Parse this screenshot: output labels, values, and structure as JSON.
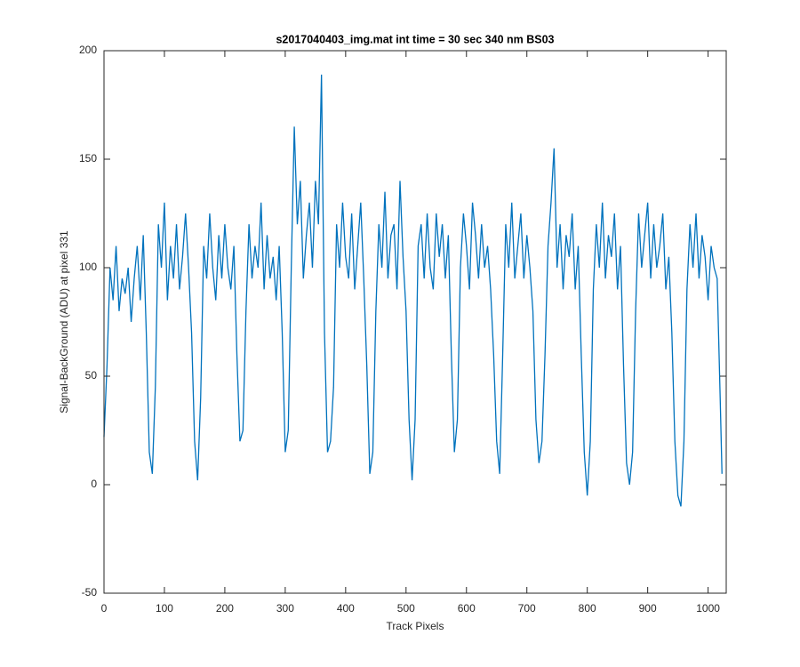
{
  "chart_data": {
    "type": "line",
    "title": "s2017040403_img.mat int time = 30 sec  340 nm BS03",
    "xlabel": "Track Pixels",
    "ylabel": "Signal-BackGround (ADU) at pixel 331",
    "x": [
      0,
      5,
      10,
      15,
      20,
      25,
      30,
      35,
      40,
      45,
      50,
      55,
      60,
      65,
      70,
      75,
      80,
      85,
      90,
      95,
      100,
      105,
      110,
      115,
      120,
      125,
      130,
      135,
      140,
      145,
      150,
      155,
      160,
      165,
      170,
      175,
      180,
      185,
      190,
      195,
      200,
      205,
      210,
      215,
      220,
      225,
      230,
      235,
      240,
      245,
      250,
      255,
      260,
      265,
      270,
      275,
      280,
      285,
      290,
      295,
      300,
      305,
      310,
      315,
      320,
      325,
      330,
      335,
      340,
      345,
      350,
      355,
      360,
      365,
      370,
      375,
      380,
      385,
      390,
      395,
      400,
      405,
      410,
      415,
      420,
      425,
      430,
      435,
      440,
      445,
      450,
      455,
      460,
      465,
      470,
      475,
      480,
      485,
      490,
      495,
      500,
      505,
      510,
      515,
      520,
      525,
      530,
      535,
      540,
      545,
      550,
      555,
      560,
      565,
      570,
      575,
      580,
      585,
      590,
      595,
      600,
      605,
      610,
      615,
      620,
      625,
      630,
      635,
      640,
      645,
      650,
      655,
      660,
      665,
      670,
      675,
      680,
      685,
      690,
      695,
      700,
      705,
      710,
      715,
      720,
      725,
      730,
      735,
      740,
      745,
      750,
      755,
      760,
      765,
      770,
      775,
      780,
      785,
      790,
      795,
      800,
      805,
      810,
      815,
      820,
      825,
      830,
      835,
      840,
      845,
      850,
      855,
      860,
      865,
      870,
      875,
      880,
      885,
      890,
      895,
      900,
      905,
      910,
      915,
      920,
      925,
      930,
      935,
      940,
      945,
      950,
      955,
      960,
      965,
      970,
      975,
      980,
      985,
      990,
      995,
      1000,
      1005,
      1010,
      1015,
      1020,
      1023
    ],
    "series": [
      {
        "color": "#0072bd",
        "values": [
          22,
          55,
          100,
          85,
          110,
          80,
          95,
          88,
          100,
          75,
          95,
          110,
          85,
          115,
          70,
          15,
          5,
          45,
          120,
          100,
          130,
          85,
          110,
          95,
          120,
          90,
          105,
          125,
          100,
          70,
          20,
          2,
          40,
          110,
          95,
          125,
          100,
          85,
          115,
          95,
          120,
          100,
          90,
          110,
          60,
          20,
          25,
          80,
          120,
          95,
          110,
          100,
          130,
          90,
          115,
          95,
          105,
          85,
          110,
          70,
          15,
          25,
          100,
          165,
          120,
          140,
          95,
          115,
          130,
          100,
          140,
          120,
          189,
          70,
          15,
          20,
          45,
          120,
          100,
          130,
          105,
          95,
          125,
          90,
          110,
          130,
          95,
          55,
          5,
          15,
          80,
          120,
          100,
          135,
          95,
          115,
          120,
          90,
          140,
          105,
          80,
          30,
          2,
          30,
          110,
          120,
          95,
          125,
          100,
          90,
          125,
          105,
          120,
          95,
          115,
          60,
          15,
          30,
          100,
          125,
          110,
          90,
          130,
          115,
          95,
          120,
          100,
          110,
          90,
          60,
          20,
          5,
          60,
          120,
          100,
          130,
          95,
          110,
          125,
          95,
          115,
          100,
          80,
          30,
          10,
          20,
          60,
          110,
          130,
          155,
          100,
          120,
          90,
          115,
          105,
          125,
          90,
          110,
          60,
          15,
          -5,
          20,
          90,
          120,
          100,
          130,
          95,
          115,
          105,
          125,
          90,
          110,
          55,
          10,
          0,
          15,
          80,
          125,
          100,
          115,
          130,
          95,
          120,
          100,
          110,
          125,
          90,
          105,
          70,
          20,
          -5,
          -10,
          20,
          90,
          120,
          100,
          125,
          95,
          115,
          105,
          85,
          110,
          100,
          95,
          40,
          5
        ]
      }
    ],
    "xlim": [
      0,
      1030
    ],
    "ylim": [
      -50,
      200
    ],
    "xticks": [
      0,
      100,
      200,
      300,
      400,
      500,
      600,
      700,
      800,
      900,
      1000
    ],
    "yticks": [
      -50,
      0,
      50,
      100,
      150,
      200
    ]
  }
}
